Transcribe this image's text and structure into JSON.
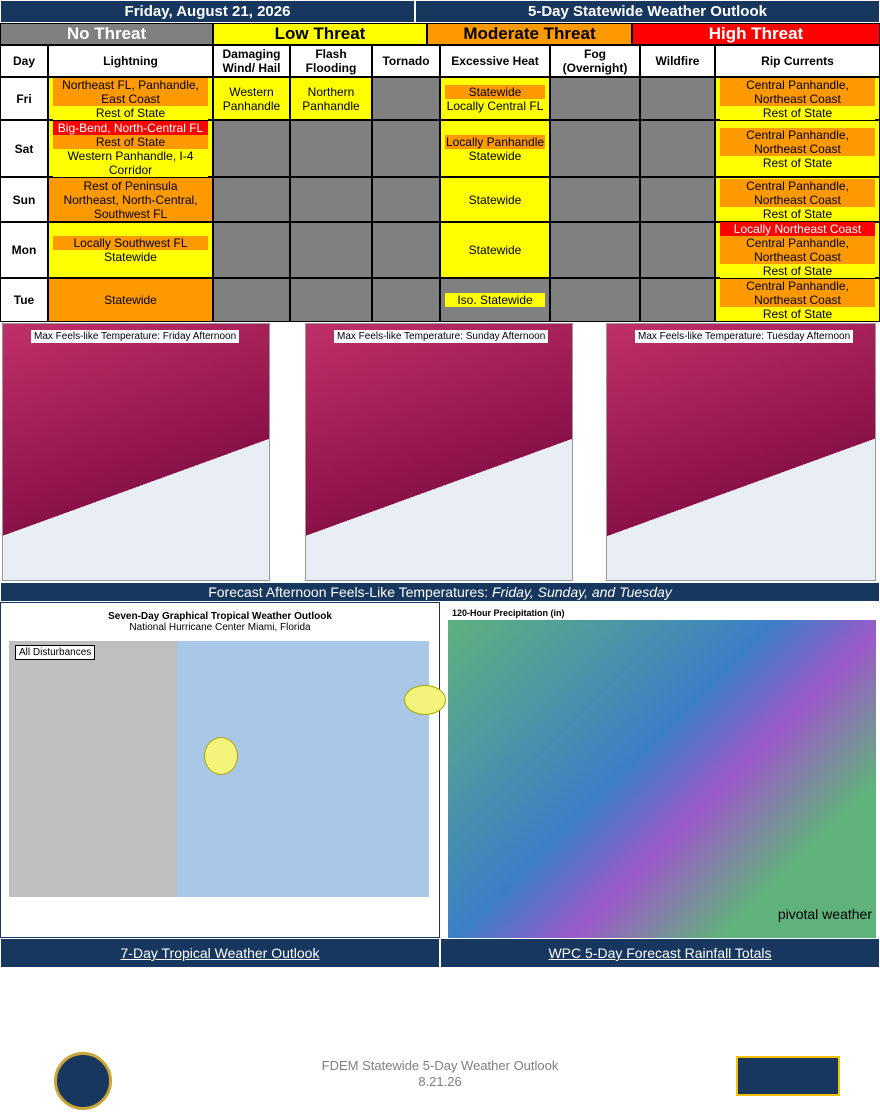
{
  "header": {
    "date": "Friday, August 21, 2026",
    "title": "5-Day Statewide Weather Outlook"
  },
  "legend": [
    {
      "text": "No Threat",
      "color": "#808080",
      "text_color": "#ffffff"
    },
    {
      "text": "Low Threat",
      "color": "#ffff00",
      "text_color": "#000000"
    },
    {
      "text": "Moderate Threat",
      "color": "#ff9900",
      "text_color": "#000000"
    },
    {
      "text": "High Threat",
      "color": "#ff0000",
      "text_color": "#ffffff"
    }
  ],
  "table": {
    "columns": [
      "Day",
      "Lightning",
      "Damaging Wind/ Hail",
      "Flash Flooding",
      "Tornado",
      "Excessive Heat",
      "Fog (Overnight)",
      "Wildfire",
      "Rip Currents"
    ],
    "rows": [
      {
        "day": "Fri",
        "cells": [
          {
            "fill": "#ffff00",
            "lines": [
              {
                "text": "Northeast FL, Panhandle, East Coast",
                "color": "#ff9900"
              },
              {
                "text": "Rest of State",
                "color": "#ffff00"
              }
            ]
          },
          {
            "fill": "#ffff00",
            "lines": [
              {
                "text": "Western Panhandle",
                "color": "#ffff00"
              }
            ]
          },
          {
            "fill": "#ffff00",
            "lines": [
              {
                "text": "Northern Panhandle",
                "color": "#ffff00"
              }
            ]
          },
          {
            "fill": "#808080",
            "lines": []
          },
          {
            "fill": "#ffff00",
            "lines": [
              {
                "text": "Statewide",
                "color": "#ff9900"
              },
              {
                "text": "Locally Central FL",
                "color": "#ffff00"
              }
            ]
          },
          {
            "fill": "#808080",
            "lines": []
          },
          {
            "fill": "#808080",
            "lines": []
          },
          {
            "fill": "#ffff00",
            "lines": [
              {
                "text": "Central Panhandle, Northeast Coast",
                "color": "#ff9900"
              },
              {
                "text": "Rest of State",
                "color": "#ffff00"
              }
            ]
          }
        ]
      },
      {
        "day": "Sat",
        "cells": [
          {
            "fill": "#ffff00",
            "lines": [
              {
                "text": "Big-Bend, North-Central FL",
                "color": "#ff0000"
              },
              {
                "text": "Rest of State",
                "color": "#ff9900"
              },
              {
                "text": "Western Panhandle, I-4 Corridor",
                "color": "#ffff00"
              }
            ]
          },
          {
            "fill": "#808080",
            "lines": []
          },
          {
            "fill": "#808080",
            "lines": []
          },
          {
            "fill": "#808080",
            "lines": []
          },
          {
            "fill": "#ffff00",
            "lines": [
              {
                "text": "Locally Panhandle",
                "color": "#ff9900"
              },
              {
                "text": "Statewide",
                "color": "#ffff00"
              }
            ]
          },
          {
            "fill": "#808080",
            "lines": []
          },
          {
            "fill": "#808080",
            "lines": []
          },
          {
            "fill": "#ffff00",
            "lines": [
              {
                "text": "Central Panhandle, Northeast Coast",
                "color": "#ff9900"
              },
              {
                "text": "Rest of State",
                "color": "#ffff00"
              }
            ]
          }
        ]
      },
      {
        "day": "Sun",
        "cells": [
          {
            "fill": "#ff9900",
            "lines": [
              {
                "text": "Rest of Peninsula",
                "color": "#ff9900"
              },
              {
                "text": "Northeast, North-Central, Southwest FL",
                "color": "#ff9900"
              }
            ]
          },
          {
            "fill": "#808080",
            "lines": []
          },
          {
            "fill": "#808080",
            "lines": []
          },
          {
            "fill": "#808080",
            "lines": []
          },
          {
            "fill": "#ffff00",
            "lines": [
              {
                "text": "Statewide",
                "color": "#ffff00"
              }
            ]
          },
          {
            "fill": "#808080",
            "lines": []
          },
          {
            "fill": "#808080",
            "lines": []
          },
          {
            "fill": "#ffff00",
            "lines": [
              {
                "text": "Central Panhandle, Northeast Coast",
                "color": "#ff9900"
              },
              {
                "text": "Rest of State",
                "color": "#ffff00"
              }
            ]
          }
        ]
      },
      {
        "day": "Mon",
        "cells": [
          {
            "fill": "#ffff00",
            "lines": [
              {
                "text": "Locally Southwest FL",
                "color": "#ff9900"
              },
              {
                "text": "Statewide",
                "color": "#ffff00"
              }
            ]
          },
          {
            "fill": "#808080",
            "lines": []
          },
          {
            "fill": "#808080",
            "lines": []
          },
          {
            "fill": "#808080",
            "lines": []
          },
          {
            "fill": "#ffff00",
            "lines": [
              {
                "text": "Statewide",
                "color": "#ffff00"
              }
            ]
          },
          {
            "fill": "#808080",
            "lines": []
          },
          {
            "fill": "#808080",
            "lines": []
          },
          {
            "fill": "#ffff00",
            "lines": [
              {
                "text": "Locally Northeast Coast",
                "color": "#ff0000"
              },
              {
                "text": "Central Panhandle, Northeast Coast",
                "color": "#ff9900"
              },
              {
                "text": "Rest of State",
                "color": "#ffff00"
              }
            ]
          }
        ]
      },
      {
        "day": "Tue",
        "cells": [
          {
            "fill": "#ff9900",
            "lines": [
              {
                "text": "Statewide",
                "color": "#ff9900"
              }
            ]
          },
          {
            "fill": "#808080",
            "lines": []
          },
          {
            "fill": "#808080",
            "lines": []
          },
          {
            "fill": "#808080",
            "lines": []
          },
          {
            "fill": "#808080",
            "lines": [
              {
                "text": "Iso. Statewide",
                "color": "#ffff00"
              }
            ]
          },
          {
            "fill": "#808080",
            "lines": []
          },
          {
            "fill": "#808080",
            "lines": []
          },
          {
            "fill": "#ffff00",
            "lines": [
              {
                "text": "Central Panhandle, Northeast Coast",
                "color": "#ff9900"
              },
              {
                "text": "Rest of State",
                "color": "#ffff00"
              }
            ]
          }
        ]
      }
    ]
  },
  "temperature_maps": {
    "panels": [
      "Max Feels-like Temperature: Friday Afternoon",
      "Max Feels-like Temperature: Sunday Afternoon",
      "Max Feels-like Temperature: Tuesday Afternoon"
    ],
    "caption": "Forecast Afternoon Feels-Like Temperatures: ",
    "caption_days": "Friday, Sunday, and Tuesday"
  },
  "tropical": {
    "title": "Seven-Day Graphical Tropical Weather Outlook",
    "subtitle": "National Hurricane Center  Miami, Florida",
    "tag": "All Disturbances",
    "caption": "7-Day Tropical Weather Outlook"
  },
  "rainfall": {
    "title": "120-Hour Precipitation (in)",
    "brand": "pivotal weather",
    "caption": "WPC 5-Day Forecast Rainfall Totals"
  },
  "footer": {
    "title": "FDEM Statewide 5-Day Weather Outlook",
    "date": "8.21.26"
  }
}
